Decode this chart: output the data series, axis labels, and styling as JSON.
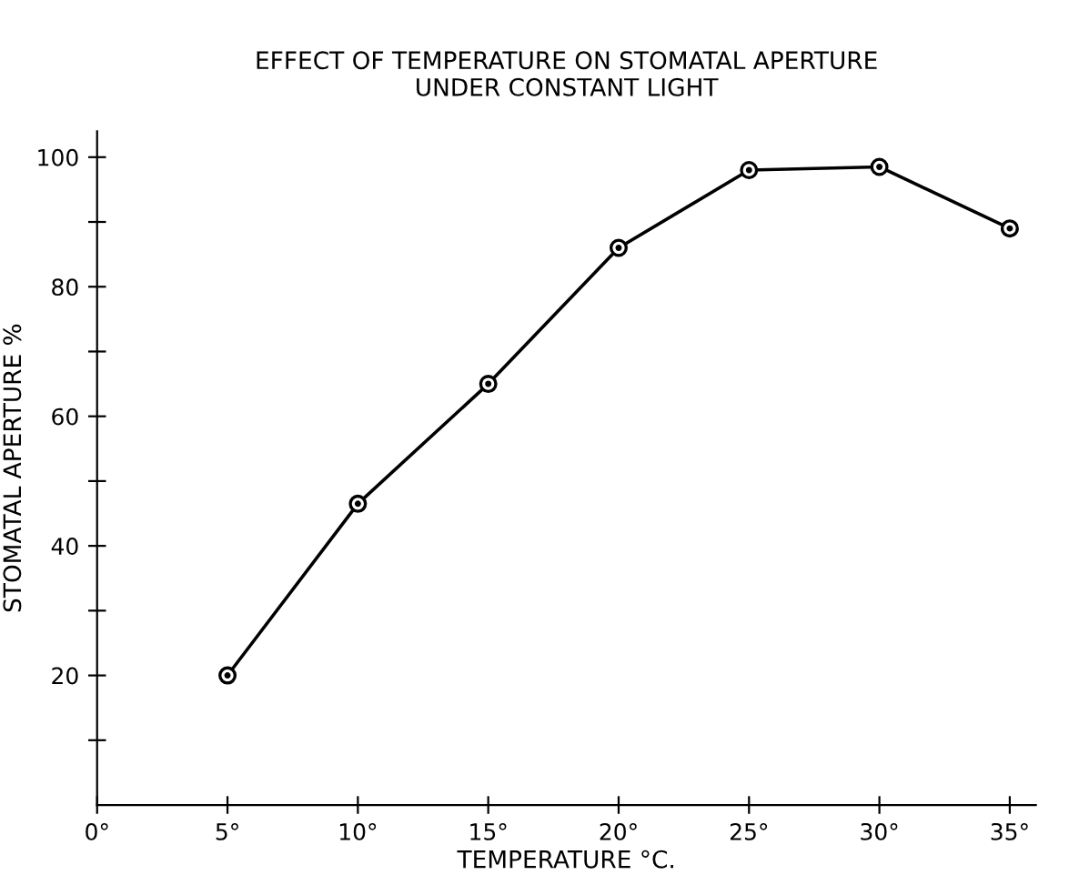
{
  "chart_data": {
    "type": "line",
    "title": "EFFECT OF TEMPERATURE ON STOMATAL APERTURE\nUNDER CONSTANT LIGHT",
    "xlabel": "TEMPERATURE °C.",
    "ylabel": "STOMATAL APERTURE %",
    "x": [
      5,
      10,
      15,
      20,
      25,
      30,
      35
    ],
    "series": [
      {
        "color": "#000000",
        "values": [
          20,
          46.5,
          65,
          86,
          98,
          98.5,
          89
        ]
      }
    ],
    "xlim": [
      0,
      36
    ],
    "ylim": [
      0,
      104
    ],
    "xticks": [
      {
        "value": 0,
        "label": "0°"
      },
      {
        "value": 5,
        "label": "5°"
      },
      {
        "value": 10,
        "label": "10°"
      },
      {
        "value": 15,
        "label": "15°"
      },
      {
        "value": 20,
        "label": "20°"
      },
      {
        "value": 25,
        "label": "25°"
      },
      {
        "value": 30,
        "label": "30°"
      },
      {
        "value": 35,
        "label": "35°"
      }
    ],
    "yticks": [
      {
        "value": 10,
        "label": null
      },
      20,
      {
        "value": 30,
        "label": null
      },
      40,
      {
        "value": 50,
        "label": null
      },
      60,
      {
        "value": 70,
        "label": null
      },
      80,
      {
        "value": 90,
        "label": null
      },
      100
    ],
    "marker": "circle",
    "line_style": "solid",
    "grid": false,
    "legend": false
  }
}
